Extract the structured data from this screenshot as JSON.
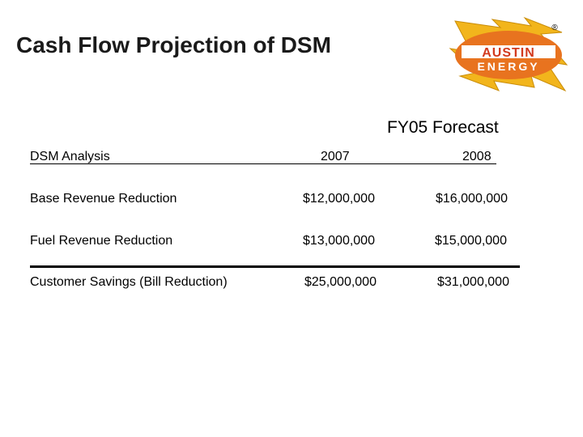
{
  "title": "Cash Flow Projection of DSM",
  "logo": {
    "text_line1": "AUSTIN",
    "text_line2": "ENERGY",
    "registered_mark": "®",
    "colors": {
      "bolt": "#f2b51c",
      "oval": "#e8731f",
      "band": "#ffffff",
      "text_red": "#d23a1e",
      "text_white": "#ffffff"
    }
  },
  "forecast_heading": "FY05 Forecast",
  "table": {
    "header": {
      "label": "DSM Analysis",
      "year1": "2007",
      "year2": "2008"
    },
    "rows": [
      {
        "label": "Base Revenue Reduction",
        "year1": "$12,000,000",
        "year2": "$16,000,000"
      },
      {
        "label": "Fuel Revenue Reduction",
        "year1": "$13,000,000",
        "year2": "$15,000,000"
      }
    ],
    "total": {
      "label": "Customer Savings (Bill Reduction)",
      "year1": "$25,000,000",
      "year2": "$31,000,000"
    }
  }
}
